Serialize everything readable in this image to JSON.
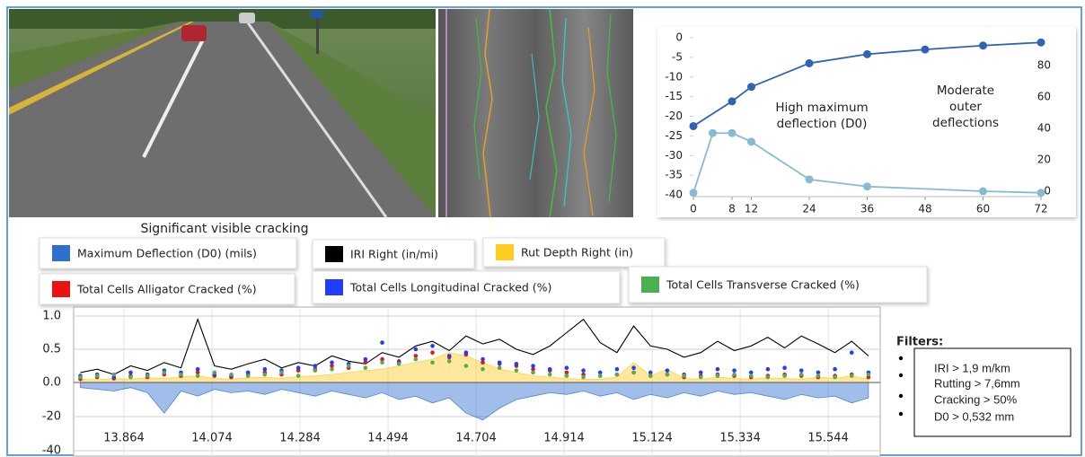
{
  "caption": "Significant visible cracking",
  "filters": {
    "title": "Filters:",
    "items": [
      "IRI > 1,9 m/km",
      "Rutting > 7,6mm",
      "Cracking > 50%",
      "D0 > 0,532 mm"
    ]
  },
  "chart_data": [
    {
      "type": "line",
      "xlim": [
        0,
        72
      ],
      "xticks": [
        0,
        8,
        12,
        24,
        36,
        48,
        60,
        72
      ],
      "ylim": [
        -40,
        0
      ],
      "yticks": [
        -40,
        -35,
        -30,
        -25,
        -20,
        -15,
        -10,
        -5,
        0
      ],
      "y2lim": [
        -2.3,
        97.7
      ],
      "y2ticks": [
        0,
        20,
        40,
        60,
        80
      ],
      "annotations": [
        {
          "text": [
            "High maximum",
            "deflection (D0)"
          ]
        },
        {
          "text": [
            "Moderate",
            "outer",
            "deflections"
          ]
        }
      ],
      "series": [
        {
          "color": "#2f63b6",
          "x": [
            0,
            8,
            12,
            24,
            36,
            48,
            60,
            72
          ],
          "values": [
            -22.5,
            -16.2,
            -12.5,
            -6.5,
            -4.2,
            -3,
            -2,
            -1.2
          ]
        },
        {
          "color": "#86bcd3",
          "axis": "y2",
          "x": [
            0,
            4,
            8,
            12,
            24,
            36,
            60,
            72
          ],
          "values": [
            -1,
            37,
            37,
            31.5,
            7.5,
            3,
            0,
            -1
          ]
        }
      ]
    },
    {
      "type": "combo",
      "x": [
        13.76,
        13.8,
        13.84,
        13.88,
        13.92,
        13.96,
        14,
        14.04,
        14.08,
        14.12,
        14.16,
        14.2,
        14.24,
        14.28,
        14.32,
        14.36,
        14.4,
        14.44,
        14.48,
        14.52,
        14.56,
        14.6,
        14.64,
        14.68,
        14.72,
        14.76,
        14.8,
        14.84,
        14.88,
        14.92,
        14.96,
        15,
        15.04,
        15.08,
        15.12,
        15.16,
        15.2,
        15.24,
        15.28,
        15.32,
        15.36,
        15.4,
        15.44,
        15.48,
        15.52,
        15.56,
        15.6,
        15.64
      ],
      "xlim": [
        13.744,
        15.668
      ],
      "xticks": [
        13.864,
        14.074,
        14.284,
        14.494,
        14.704,
        14.914,
        15.124,
        15.334,
        15.544
      ],
      "ylim": [
        0,
        1
      ],
      "yticks": [
        {
          "value": 0,
          "label": "0.0"
        },
        0.5,
        {
          "value": 1,
          "label": "1.0"
        }
      ],
      "y2lim": [
        -40,
        0
      ],
      "y2ticks": [
        -20,
        -40
      ],
      "grid": true,
      "series": [
        {
          "name": "Maximum Deflection (D0) (mils)",
          "color": "#2f6fd0",
          "style": "area",
          "axis": "y2",
          "values": [
            -3,
            -4,
            -5,
            -3,
            -6,
            -18,
            -5,
            -8,
            -4,
            -6,
            -5,
            -7,
            -4,
            -6,
            -8,
            -5,
            -7,
            -9,
            -6,
            -10,
            -8,
            -12,
            -9,
            -18,
            -22,
            -15,
            -10,
            -8,
            -6,
            -7,
            -5,
            -8,
            -6,
            -10,
            -7,
            -9,
            -6,
            -8,
            -5,
            -7,
            -6,
            -8,
            -10,
            -7,
            -9,
            -8,
            -12,
            -9
          ]
        },
        {
          "name": "IRI Right (in/mi)",
          "color": "#000000",
          "style": "line",
          "values": [
            0.15,
            0.2,
            0.12,
            0.25,
            0.18,
            0.3,
            0.22,
            0.95,
            0.25,
            0.2,
            0.28,
            0.35,
            0.22,
            0.3,
            0.25,
            0.4,
            0.32,
            0.28,
            0.45,
            0.38,
            0.55,
            0.62,
            0.48,
            0.7,
            0.58,
            0.65,
            0.5,
            0.42,
            0.55,
            0.75,
            0.95,
            0.6,
            0.45,
            0.85,
            0.55,
            0.5,
            0.38,
            0.45,
            0.62,
            0.48,
            0.55,
            0.68,
            0.52,
            0.7,
            0.58,
            0.45,
            0.62,
            0.4
          ]
        },
        {
          "name": "Rut Depth Right (in)",
          "color": "#ffcc22",
          "style": "area",
          "values": [
            0.05,
            0.04,
            0.06,
            0.05,
            0.07,
            0.06,
            0.08,
            0.1,
            0.06,
            0.05,
            0.07,
            0.08,
            0.06,
            0.09,
            0.1,
            0.12,
            0.15,
            0.18,
            0.2,
            0.25,
            0.3,
            0.35,
            0.45,
            0.4,
            0.3,
            0.2,
            0.15,
            0.1,
            0.08,
            0.06,
            0.05,
            0.05,
            0.08,
            0.3,
            0.1,
            0.2,
            0.06,
            0.05,
            0.08,
            0.06,
            0.05,
            0.07,
            0.06,
            0.05,
            0.08,
            0.06,
            0.1,
            0.05
          ]
        },
        {
          "name": "Total Cells Alligator Cracked (%)",
          "color": "#ee1111",
          "style": "points",
          "values": [
            0.05,
            0.08,
            0.06,
            0.1,
            0.08,
            0.12,
            0.1,
            0.15,
            0.1,
            0.08,
            0.12,
            0.15,
            0.12,
            0.18,
            0.2,
            0.25,
            0.22,
            0.3,
            0.35,
            0.32,
            0.4,
            0.45,
            0.38,
            0.42,
            0.3,
            0.28,
            0.25,
            0.2,
            0.18,
            0.15,
            0.12,
            0.1,
            0.12,
            0.15,
            0.1,
            0.12,
            0.08,
            0.1,
            0.12,
            0.1,
            0.08,
            0.1,
            0.12,
            0.1,
            0.08,
            0.1,
            0.12,
            0.08
          ]
        },
        {
          "name": "Total Cells Longitudinal Cracked (%)",
          "color": "#1f3cff",
          "style": "points",
          "values": [
            0.1,
            0.12,
            0.08,
            0.15,
            0.12,
            0.18,
            0.15,
            0.2,
            0.12,
            0.1,
            0.15,
            0.2,
            0.18,
            0.22,
            0.25,
            0.3,
            0.28,
            0.35,
            0.6,
            0.3,
            0.5,
            0.55,
            0.4,
            0.45,
            0.35,
            0.3,
            0.28,
            0.25,
            0.2,
            0.22,
            0.18,
            0.15,
            0.2,
            0.22,
            0.15,
            0.18,
            0.12,
            0.15,
            0.2,
            0.18,
            0.15,
            0.2,
            0.22,
            0.18,
            0.15,
            0.2,
            0.45,
            0.15
          ]
        },
        {
          "name": "Total Cells Transverse Cracked (%)",
          "color": "#4caf50",
          "style": "points",
          "values": [
            0.08,
            0.1,
            0.12,
            0.08,
            0.1,
            0.15,
            0.12,
            0.1,
            0.15,
            0.12,
            0.1,
            0.12,
            0.15,
            0.1,
            0.18,
            0.2,
            0.25,
            0.22,
            0.3,
            0.28,
            0.35,
            0.3,
            0.32,
            0.25,
            0.2,
            0.22,
            0.18,
            0.15,
            0.12,
            0.1,
            0.08,
            0.1,
            0.12,
            0.15,
            0.1,
            0.12,
            0.1,
            0.08,
            0.1,
            0.12,
            0.1,
            0.08,
            0.1,
            0.12,
            0.1,
            0.08,
            0.1,
            0.12
          ]
        }
      ]
    }
  ]
}
